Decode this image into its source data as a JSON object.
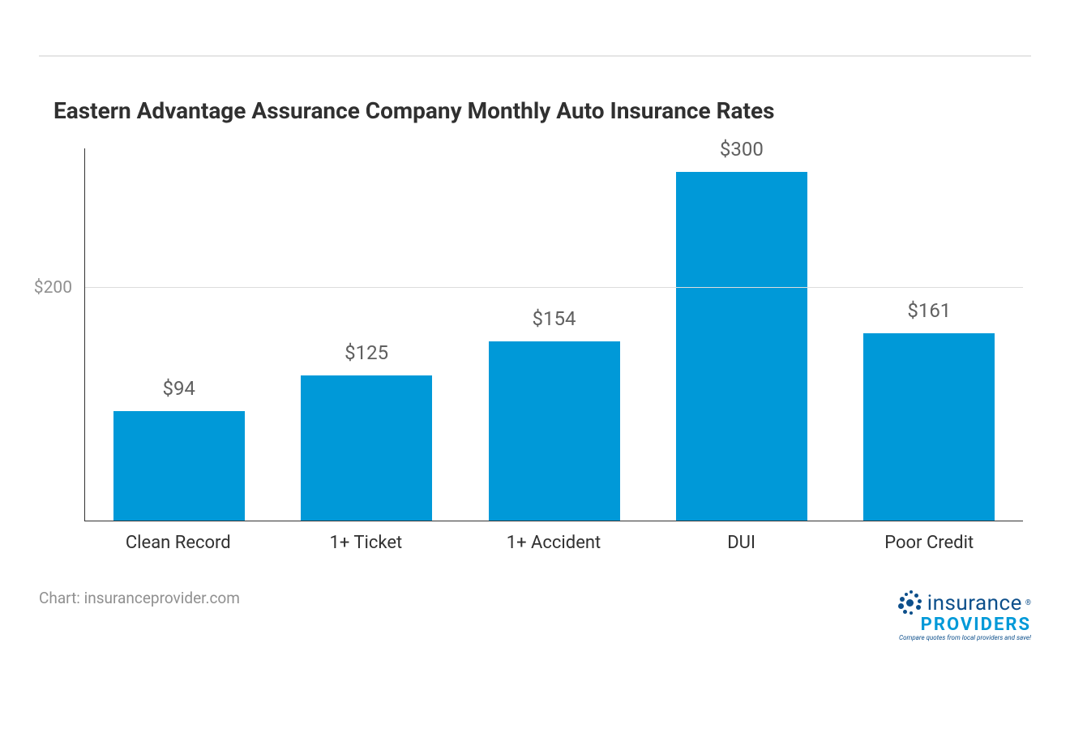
{
  "chart": {
    "type": "bar",
    "title": "Eastern Advantage Assurance Company Monthly Auto Insurance Rates",
    "title_fontsize": 28,
    "title_color": "#303030",
    "categories": [
      "Clean Record",
      "1+ Ticket",
      "1+ Accident",
      "DUI",
      "Poor Credit"
    ],
    "values": [
      94,
      125,
      154,
      300,
      161
    ],
    "value_labels": [
      "$94",
      "$125",
      "$154",
      "$300",
      "$161"
    ],
    "bar_color": "#0099d8",
    "bar_width_pct": 70,
    "y_max": 320,
    "y_ticks": [
      200
    ],
    "y_tick_labels": [
      "$200"
    ],
    "grid_color": "#dddddd",
    "axis_color": "#333333",
    "background_color": "#ffffff",
    "x_label_color": "#303030",
    "x_label_fontsize": 22,
    "value_label_color": "#606060",
    "value_label_fontsize": 24,
    "y_label_color": "#909090",
    "y_label_fontsize": 21
  },
  "footer": {
    "source_label": "Chart: insuranceprovider.com",
    "source_color": "#909090",
    "logo": {
      "word1": "insurance",
      "word2": "PROVIDERS",
      "reg": "®",
      "tagline": "Compare quotes from local providers and save!",
      "color_primary": "#0d4f8b",
      "color_accent": "#0099d8"
    }
  },
  "divider_color": "#e5e5e5"
}
